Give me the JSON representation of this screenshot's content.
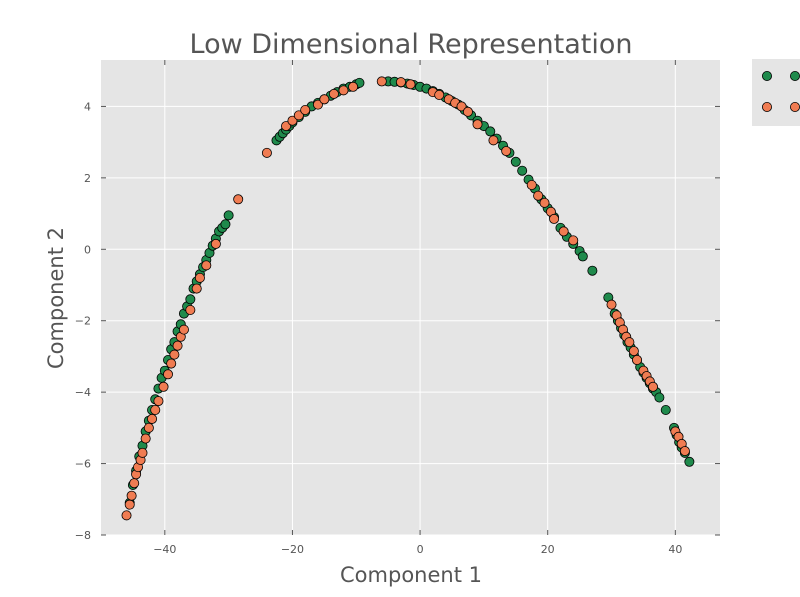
{
  "chart_data": {
    "type": "scatter",
    "title": "Low Dimensional Representation",
    "xlabel": "Component 1",
    "ylabel": "Component 2",
    "xlim": [
      -50,
      47
    ],
    "ylim": [
      -8,
      5.3
    ],
    "xticks": [
      -40,
      -20,
      0,
      20,
      40
    ],
    "yticks": [
      -8,
      -6,
      -4,
      -2,
      0,
      2,
      4
    ],
    "grid": true,
    "legend": "outside-right",
    "colors": {
      "series_a": "#1f8a4c",
      "series_b": "#f07c52",
      "background": "#e5e5e5"
    },
    "series": [
      {
        "points": [
          [
            -45.5,
            -7.1
          ],
          [
            -45.0,
            -6.6
          ],
          [
            -44.5,
            -6.2
          ],
          [
            -44.0,
            -5.8
          ],
          [
            -43.5,
            -5.5
          ],
          [
            -43.0,
            -5.1
          ],
          [
            -42.5,
            -4.8
          ],
          [
            -42.0,
            -4.5
          ],
          [
            -41.5,
            -4.2
          ],
          [
            -41.0,
            -3.9
          ],
          [
            -40.5,
            -3.6
          ],
          [
            -40.0,
            -3.4
          ],
          [
            -39.5,
            -3.1
          ],
          [
            -39.0,
            -2.8
          ],
          [
            -38.5,
            -2.6
          ],
          [
            -38.0,
            -2.3
          ],
          [
            -37.5,
            -2.1
          ],
          [
            -37.0,
            -1.8
          ],
          [
            -36.5,
            -1.6
          ],
          [
            -36.0,
            -1.4
          ],
          [
            -35.5,
            -1.1
          ],
          [
            -35.0,
            -0.9
          ],
          [
            -34.5,
            -0.7
          ],
          [
            -34.0,
            -0.5
          ],
          [
            -33.5,
            -0.3
          ],
          [
            -33.0,
            -0.1
          ],
          [
            -32.5,
            0.1
          ],
          [
            -32.0,
            0.3
          ],
          [
            -31.5,
            0.5
          ],
          [
            -31.0,
            0.6
          ],
          [
            -30.5,
            0.7
          ],
          [
            -30.0,
            0.95
          ],
          [
            -22.5,
            3.05
          ],
          [
            -22.0,
            3.15
          ],
          [
            -21.5,
            3.25
          ],
          [
            -21.0,
            3.35
          ],
          [
            -20.5,
            3.45
          ],
          [
            -20.0,
            3.55
          ],
          [
            -19.0,
            3.7
          ],
          [
            -18.0,
            3.85
          ],
          [
            -17.0,
            4.0
          ],
          [
            -16.0,
            4.1
          ],
          [
            -15.0,
            4.2
          ],
          [
            -14.0,
            4.3
          ],
          [
            -13.0,
            4.4
          ],
          [
            -12.0,
            4.5
          ],
          [
            -11.0,
            4.55
          ],
          [
            -10.0,
            4.62
          ],
          [
            -9.5,
            4.66
          ],
          [
            -5.0,
            4.7
          ],
          [
            -4.0,
            4.69
          ],
          [
            -3.0,
            4.67
          ],
          [
            -2.0,
            4.64
          ],
          [
            -1.0,
            4.6
          ],
          [
            0.0,
            4.55
          ],
          [
            1.0,
            4.5
          ],
          [
            2.0,
            4.43
          ],
          [
            3.0,
            4.35
          ],
          [
            4.0,
            4.25
          ],
          [
            5.0,
            4.15
          ],
          [
            6.0,
            4.05
          ],
          [
            7.0,
            3.9
          ],
          [
            8.0,
            3.75
          ],
          [
            9.0,
            3.6
          ],
          [
            10.0,
            3.45
          ],
          [
            11.0,
            3.3
          ],
          [
            12.0,
            3.1
          ],
          [
            13.0,
            2.9
          ],
          [
            14.0,
            2.7
          ],
          [
            15.0,
            2.45
          ],
          [
            16.0,
            2.2
          ],
          [
            17.0,
            1.95
          ],
          [
            18.0,
            1.7
          ],
          [
            19.0,
            1.4
          ],
          [
            20.0,
            1.15
          ],
          [
            21.0,
            0.9
          ],
          [
            22.0,
            0.6
          ],
          [
            23.0,
            0.35
          ],
          [
            24.0,
            0.15
          ],
          [
            25.0,
            -0.05
          ],
          [
            25.5,
            -0.2
          ],
          [
            27.0,
            -0.6
          ],
          [
            29.5,
            -1.35
          ],
          [
            30.5,
            -1.8
          ],
          [
            31.0,
            -2.0
          ],
          [
            31.5,
            -2.2
          ],
          [
            32.0,
            -2.4
          ],
          [
            32.5,
            -2.6
          ],
          [
            33.0,
            -2.75
          ],
          [
            33.5,
            -2.95
          ],
          [
            34.0,
            -3.1
          ],
          [
            34.5,
            -3.3
          ],
          [
            35.0,
            -3.45
          ],
          [
            35.5,
            -3.6
          ],
          [
            36.0,
            -3.75
          ],
          [
            36.5,
            -3.9
          ],
          [
            37.0,
            -4.0
          ],
          [
            37.5,
            -4.15
          ],
          [
            38.5,
            -4.5
          ],
          [
            39.8,
            -5.0
          ],
          [
            40.2,
            -5.2
          ],
          [
            40.6,
            -5.4
          ],
          [
            41.0,
            -5.55
          ],
          [
            41.5,
            -5.7
          ],
          [
            42.2,
            -5.95
          ]
        ]
      },
      {
        "points": [
          [
            -46.0,
            -7.45
          ],
          [
            -45.5,
            -7.15
          ],
          [
            -45.2,
            -6.9
          ],
          [
            -44.8,
            -6.55
          ],
          [
            -44.5,
            -6.3
          ],
          [
            -44.2,
            -6.1
          ],
          [
            -43.8,
            -5.9
          ],
          [
            -43.5,
            -5.7
          ],
          [
            -43.0,
            -5.3
          ],
          [
            -42.5,
            -5.0
          ],
          [
            -42.0,
            -4.75
          ],
          [
            -41.5,
            -4.5
          ],
          [
            -41.0,
            -4.25
          ],
          [
            -40.2,
            -3.85
          ],
          [
            -39.5,
            -3.5
          ],
          [
            -39.0,
            -3.2
          ],
          [
            -38.5,
            -2.95
          ],
          [
            -38.0,
            -2.7
          ],
          [
            -37.5,
            -2.45
          ],
          [
            -37.0,
            -2.25
          ],
          [
            -36.0,
            -1.7
          ],
          [
            -35.0,
            -1.1
          ],
          [
            -34.5,
            -0.8
          ],
          [
            -33.5,
            -0.45
          ],
          [
            -32.0,
            0.15
          ],
          [
            -28.5,
            1.4
          ],
          [
            -24.0,
            2.7
          ],
          [
            -21.0,
            3.45
          ],
          [
            -20.0,
            3.6
          ],
          [
            -19.0,
            3.75
          ],
          [
            -18.0,
            3.9
          ],
          [
            -16.0,
            4.05
          ],
          [
            -15.0,
            4.2
          ],
          [
            -13.5,
            4.35
          ],
          [
            -12.0,
            4.45
          ],
          [
            -10.5,
            4.55
          ],
          [
            -6.0,
            4.7
          ],
          [
            -3.0,
            4.68
          ],
          [
            -1.5,
            4.62
          ],
          [
            2.0,
            4.4
          ],
          [
            3.0,
            4.32
          ],
          [
            4.5,
            4.2
          ],
          [
            5.5,
            4.1
          ],
          [
            6.5,
            4.0
          ],
          [
            7.5,
            3.85
          ],
          [
            9.0,
            3.5
          ],
          [
            11.5,
            3.05
          ],
          [
            13.5,
            2.75
          ],
          [
            17.5,
            1.8
          ],
          [
            18.5,
            1.5
          ],
          [
            19.5,
            1.3
          ],
          [
            20.5,
            1.05
          ],
          [
            21.0,
            0.85
          ],
          [
            22.5,
            0.5
          ],
          [
            24.0,
            0.25
          ],
          [
            30.0,
            -1.55
          ],
          [
            30.8,
            -1.85
          ],
          [
            31.3,
            -2.05
          ],
          [
            31.8,
            -2.25
          ],
          [
            32.3,
            -2.45
          ],
          [
            32.8,
            -2.6
          ],
          [
            33.5,
            -2.85
          ],
          [
            34.0,
            -3.1
          ],
          [
            35.0,
            -3.4
          ],
          [
            35.5,
            -3.55
          ],
          [
            36.0,
            -3.7
          ],
          [
            36.5,
            -3.85
          ],
          [
            40.0,
            -5.1
          ],
          [
            40.5,
            -5.25
          ],
          [
            41.0,
            -5.45
          ],
          [
            41.5,
            -5.65
          ]
        ]
      }
    ]
  }
}
